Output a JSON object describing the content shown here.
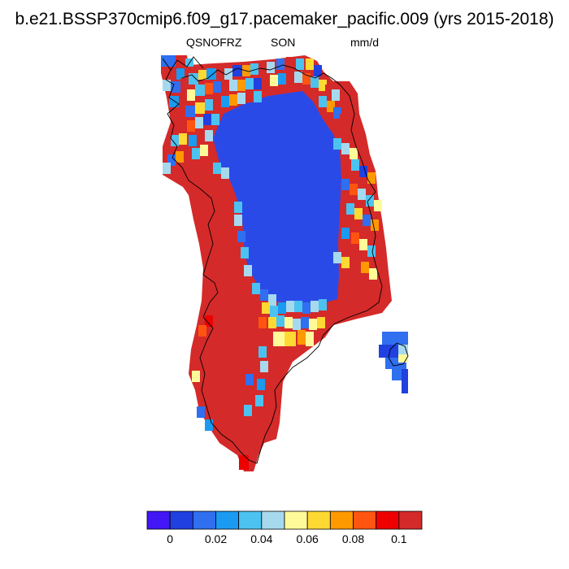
{
  "title": "b.e21.BSSP370cmip6.f09_g17.pacemaker_pacific.009 (yrs 2015-2018)",
  "header": {
    "left": "QSNOFRZ",
    "center": "SON",
    "right": "mm/d"
  },
  "colorbar": {
    "colors": [
      "#4216f5",
      "#2040e0",
      "#2f6ff0",
      "#1a9af0",
      "#4cc2f0",
      "#a6d9ee",
      "#fffa99",
      "#ffd933",
      "#ff9900",
      "#ff5511",
      "#ee0000",
      "#d42a2a"
    ],
    "tick_labels": [
      "0",
      "0.02",
      "0.04",
      "0.06",
      "0.08",
      "0.1"
    ]
  },
  "map_colors": {
    "interior": "#2a4ae8",
    "margin": "#d42a2a",
    "coast": "#000000"
  }
}
